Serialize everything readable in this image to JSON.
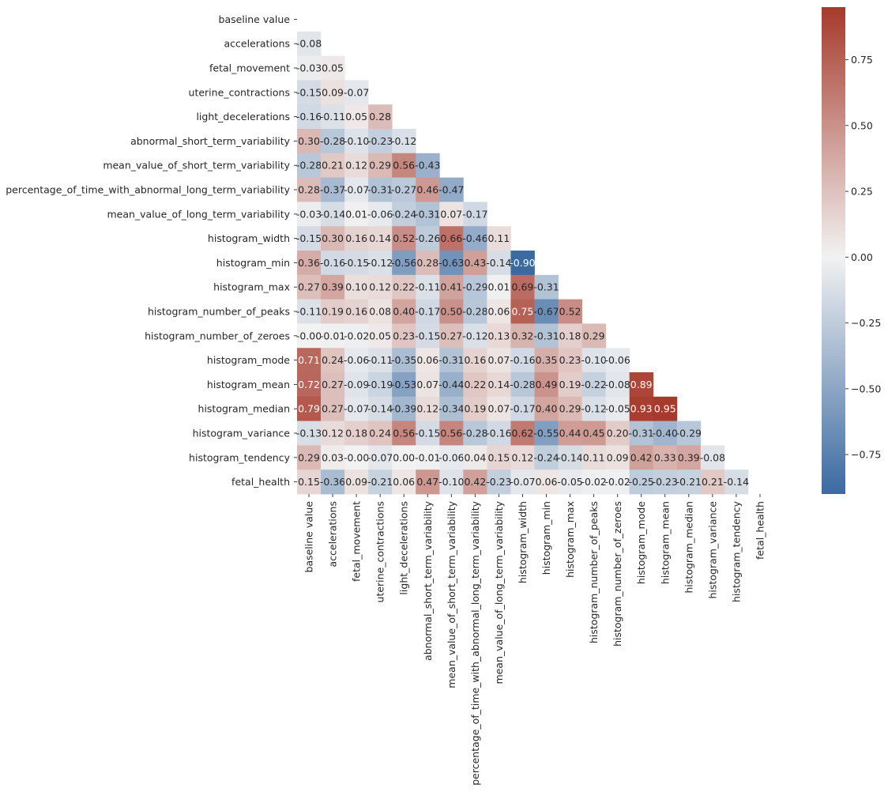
{
  "chart_data": {
    "type": "heatmap",
    "title": "",
    "xlabel": "",
    "ylabel": "",
    "mask": "upper-triangle-including-diagonal",
    "value_format": "0.00",
    "labels": [
      "baseline value",
      "accelerations",
      "fetal_movement",
      "uterine_contractions",
      "light_decelerations",
      "abnormal_short_term_variability",
      "mean_value_of_short_term_variability",
      "percentage_of_time_with_abnormal_long_term_variability",
      "mean_value_of_long_term_variability",
      "histogram_width",
      "histogram_min",
      "histogram_max",
      "histogram_number_of_peaks",
      "histogram_number_of_zeroes",
      "histogram_mode",
      "histogram_mean",
      "histogram_median",
      "histogram_variance",
      "histogram_tendency",
      "fetal_health"
    ],
    "rows": [
      [],
      [
        -0.08
      ],
      [
        -0.03,
        0.05
      ],
      [
        -0.15,
        0.09,
        -0.07
      ],
      [
        -0.16,
        -0.11,
        0.05,
        0.28
      ],
      [
        0.3,
        -0.28,
        -0.1,
        -0.23,
        -0.12
      ],
      [
        -0.28,
        0.21,
        0.12,
        0.29,
        0.56,
        -0.43
      ],
      [
        0.28,
        -0.37,
        -0.07,
        -0.31,
        -0.27,
        0.46,
        -0.47
      ],
      [
        -0.03,
        -0.14,
        0.01,
        -0.06,
        -0.24,
        -0.31,
        0.07,
        -0.17
      ],
      [
        -0.15,
        0.3,
        0.16,
        0.14,
        0.52,
        -0.26,
        0.66,
        -0.46,
        0.11
      ],
      [
        0.36,
        -0.16,
        -0.15,
        -0.12,
        -0.56,
        0.28,
        -0.63,
        0.43,
        -0.14,
        -0.9
      ],
      [
        0.27,
        0.39,
        0.1,
        0.12,
        0.22,
        -0.11,
        0.41,
        -0.29,
        0.01,
        0.69,
        -0.31
      ],
      [
        -0.11,
        0.19,
        0.16,
        0.08,
        0.4,
        -0.17,
        0.5,
        -0.28,
        0.06,
        0.75,
        -0.67,
        0.52
      ],
      [
        -0.0,
        -0.01,
        -0.02,
        0.05,
        0.23,
        -0.15,
        0.27,
        -0.12,
        0.13,
        0.32,
        -0.31,
        0.18,
        0.29
      ],
      [
        0.71,
        0.24,
        -0.06,
        -0.11,
        -0.35,
        0.06,
        -0.31,
        0.16,
        0.07,
        -0.16,
        0.35,
        0.23,
        -0.1,
        -0.06
      ],
      [
        0.72,
        0.27,
        -0.09,
        -0.19,
        -0.53,
        0.07,
        -0.44,
        0.22,
        0.14,
        -0.28,
        0.49,
        0.19,
        -0.22,
        -0.08,
        0.89
      ],
      [
        0.79,
        0.27,
        -0.07,
        -0.14,
        -0.39,
        0.12,
        -0.34,
        0.19,
        0.07,
        -0.17,
        0.4,
        0.29,
        -0.12,
        -0.05,
        0.93,
        0.95
      ],
      [
        -0.13,
        0.12,
        0.18,
        0.24,
        0.56,
        -0.15,
        0.56,
        -0.28,
        -0.16,
        0.62,
        -0.55,
        0.44,
        0.45,
        0.2,
        -0.31,
        -0.4,
        -0.29
      ],
      [
        0.29,
        0.03,
        -0.0,
        -0.07,
        0.0,
        -0.01,
        -0.06,
        0.04,
        0.15,
        0.12,
        -0.24,
        -0.14,
        0.11,
        0.09,
        0.42,
        0.33,
        0.39,
        -0.08
      ],
      [
        0.15,
        -0.36,
        0.09,
        -0.21,
        0.06,
        0.47,
        -0.1,
        0.42,
        -0.23,
        -0.07,
        0.06,
        -0.05,
        -0.02,
        -0.02,
        -0.25,
        -0.23,
        -0.21,
        0.21,
        -0.14
      ]
    ],
    "colormap": {
      "name": "diverging blue-white-red",
      "low_color": "#3b6aa1",
      "mid_color": "#f2f2f2",
      "high_color": "#a63a2c",
      "vmin": -0.9,
      "vmax": 0.95
    },
    "colorbar": {
      "ticks": [
        -0.75,
        -0.5,
        -0.25,
        0.0,
        0.25,
        0.5,
        0.75
      ],
      "tick_labels": [
        "−0.75",
        "−0.50",
        "−0.25",
        "0.00",
        "0.25",
        "0.50",
        "0.75"
      ]
    }
  }
}
